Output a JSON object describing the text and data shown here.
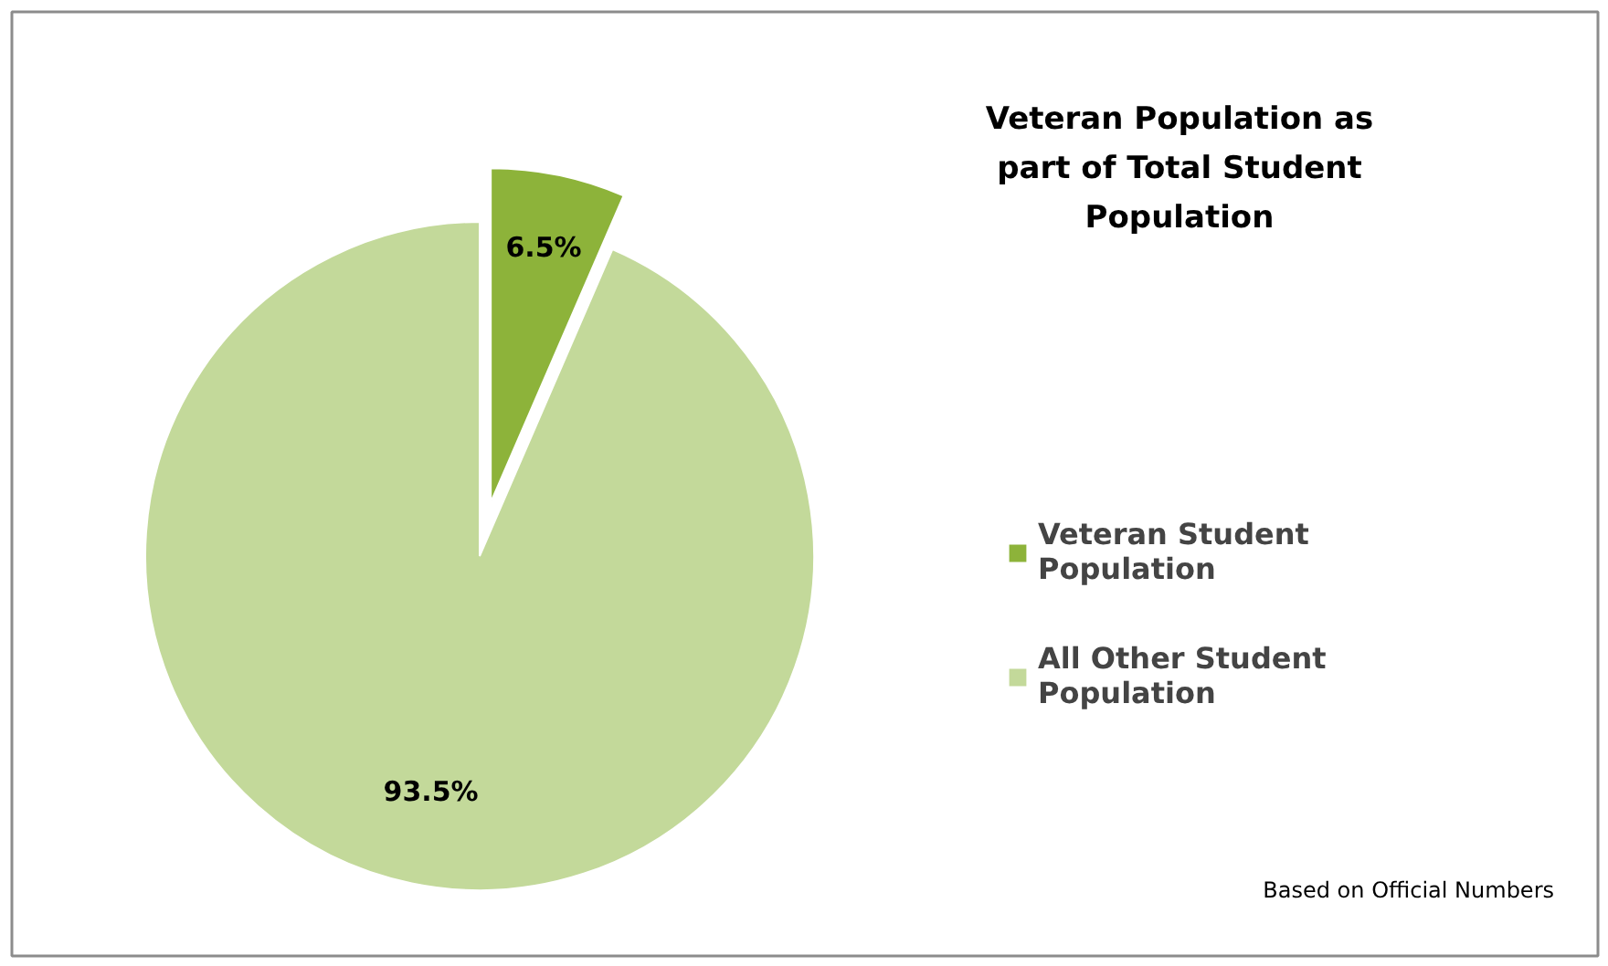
{
  "chart_data": {
    "type": "pie",
    "title": "Veteran Population as part of Total Student Population",
    "categories": [
      "Veteran Student Population",
      "All Other Student Population"
    ],
    "values": [
      6.5,
      93.5
    ],
    "colors": [
      "#8db33a",
      "#c3d99a"
    ],
    "value_labels": [
      "6.5%",
      "93.5%"
    ],
    "legend": "right",
    "annotations": [
      "Based on Official Numbers"
    ]
  }
}
